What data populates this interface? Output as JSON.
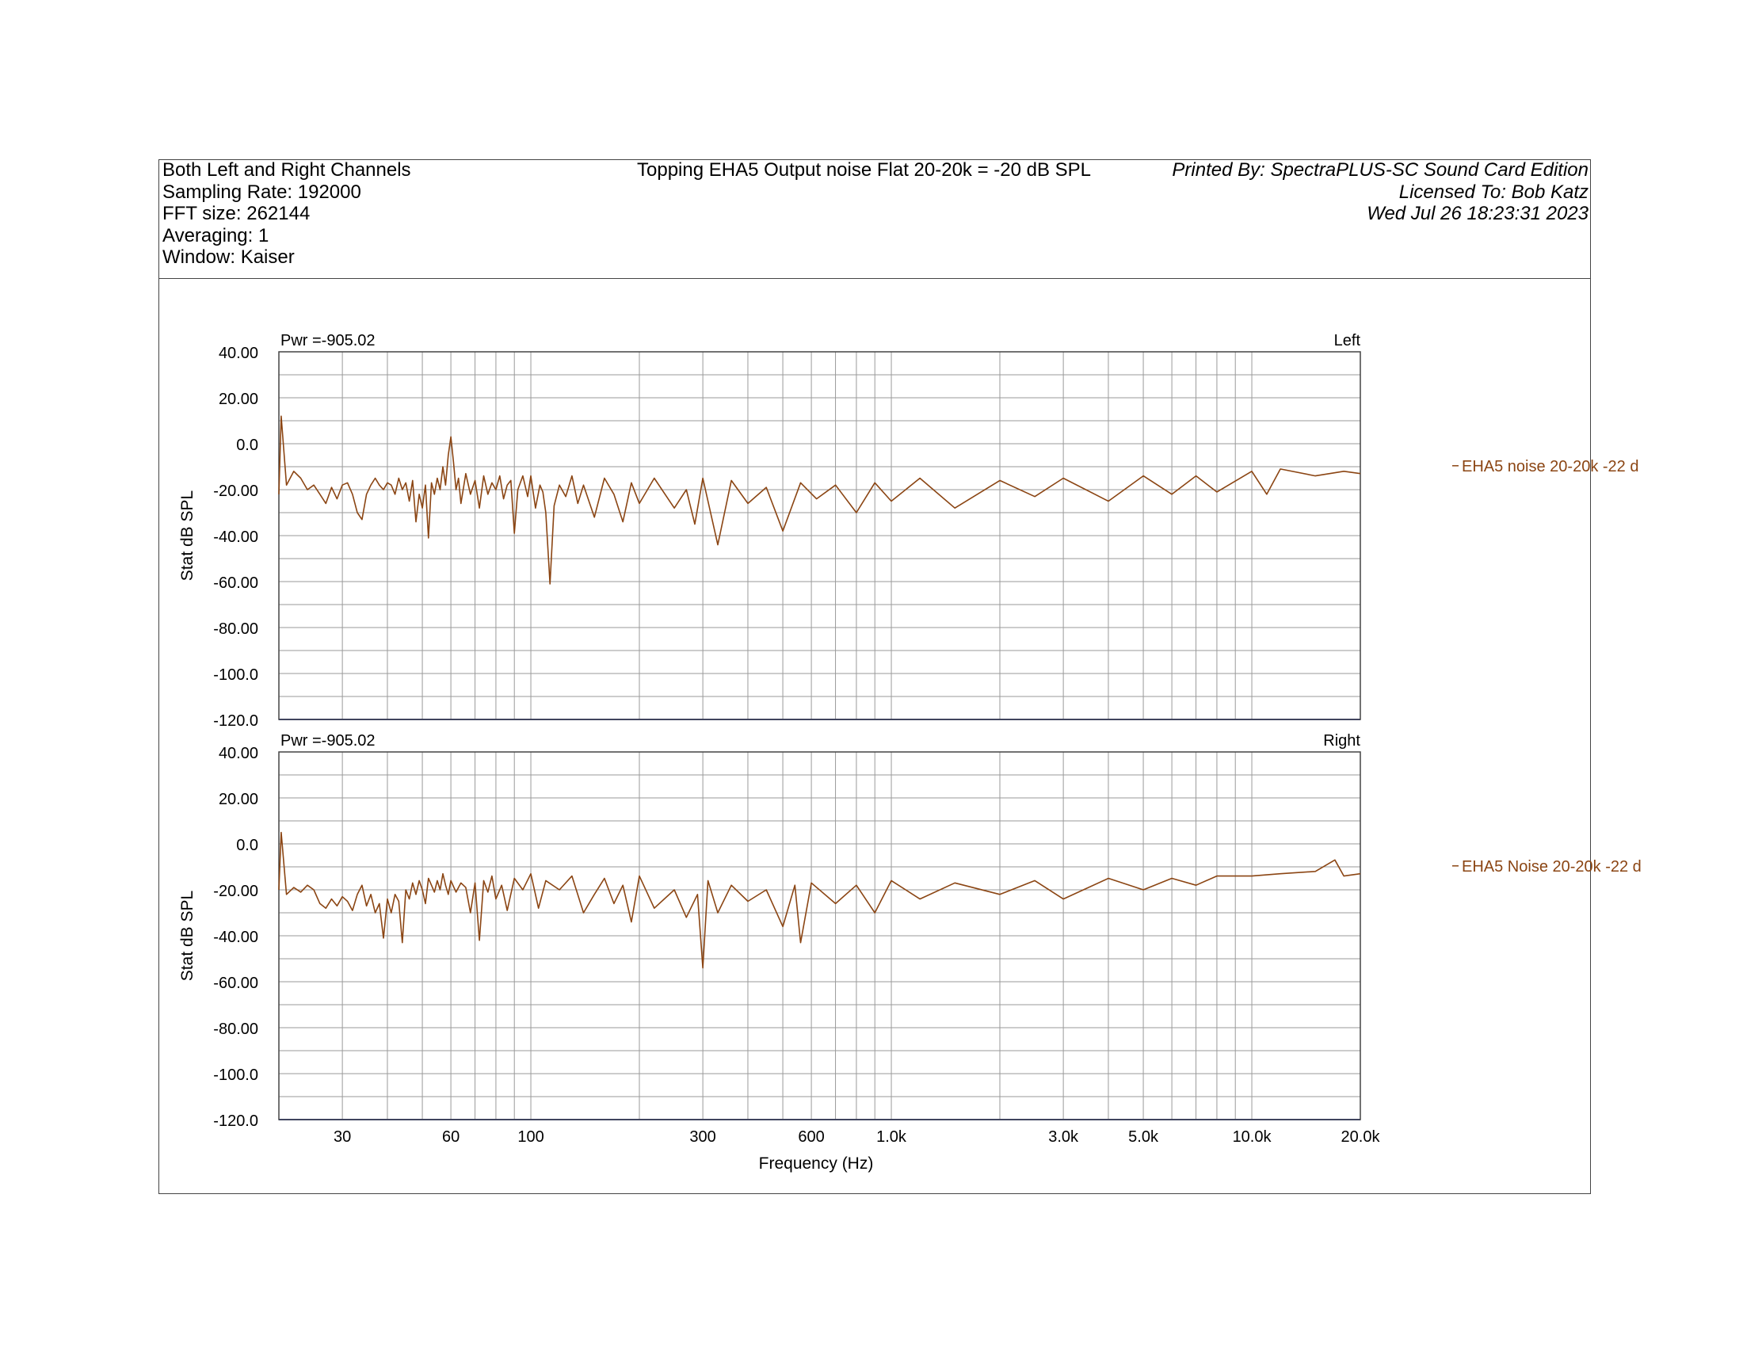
{
  "header": {
    "left_lines": [
      "Both Left and Right Channels",
      "Sampling Rate: 192000",
      "FFT size: 262144",
      "Averaging: 1",
      "Window: Kaiser"
    ],
    "title": "Topping EHA5 Output noise Flat 20-20k = -20 dB SPL",
    "right_lines": [
      "Printed By: SpectraPLUS-SC Sound Card Edition",
      "Licensed To: Bob Katz",
      "Wed Jul 26 18:23:31 2023"
    ]
  },
  "colors": {
    "trace": "#8b4513",
    "baseline": "#3344aa",
    "grid": "#9a9a9a",
    "frame": "#444444"
  },
  "chart_data": [
    {
      "type": "line",
      "channel": "Left",
      "pwr_label": "Pwr =-905.02",
      "legend": "EHA5 noise 20-20k -22 d",
      "ylabel": "Stat dB SPL",
      "xlabel": "Frequency (Hz)",
      "x_scale": "log",
      "xlim": [
        20,
        20000
      ],
      "ylim": [
        -120,
        40
      ],
      "grid": true,
      "y_ticks": [
        "40.00",
        "20.00",
        "0.0",
        "-20.00",
        "-40.00",
        "-60.00",
        "-80.00",
        "-100.0",
        "-120.0"
      ],
      "x": [
        20,
        20.3,
        21,
        22,
        23,
        24,
        25,
        26,
        27,
        28,
        29,
        30,
        31,
        32,
        33,
        34,
        35,
        36,
        37,
        38,
        39,
        40,
        41,
        42,
        43,
        44,
        45,
        46,
        47,
        48,
        49,
        50,
        51,
        52,
        53,
        54,
        55,
        56,
        57,
        58,
        59,
        60,
        61,
        62,
        63,
        64,
        66,
        68,
        70,
        72,
        74,
        76,
        78,
        80,
        82,
        84,
        86,
        88,
        90,
        92,
        95,
        98,
        100,
        103,
        106,
        108,
        110,
        113,
        116,
        120,
        125,
        130,
        135,
        140,
        150,
        160,
        170,
        180,
        190,
        200,
        220,
        250,
        270,
        285,
        300,
        330,
        360,
        400,
        450,
        500,
        560,
        620,
        700,
        800,
        900,
        1000,
        1200,
        1500,
        2000,
        2500,
        3000,
        4000,
        5000,
        6000,
        7000,
        8000,
        10000,
        11000,
        12000,
        15000,
        18000,
        20000
      ],
      "y": [
        -22,
        12,
        -18,
        -12,
        -15,
        -20,
        -18,
        -22,
        -26,
        -19,
        -24,
        -18,
        -17,
        -22,
        -30,
        -33,
        -22,
        -18,
        -15,
        -18,
        -20,
        -17,
        -18,
        -22,
        -15,
        -20,
        -17,
        -25,
        -16,
        -34,
        -22,
        -28,
        -18,
        -41,
        -17,
        -22,
        -15,
        -20,
        -10,
        -18,
        -5,
        3,
        -8,
        -20,
        -15,
        -26,
        -13,
        -22,
        -16,
        -28,
        -14,
        -22,
        -17,
        -20,
        -14,
        -24,
        -18,
        -16,
        -39,
        -20,
        -14,
        -23,
        -14,
        -28,
        -18,
        -21,
        -30,
        -61,
        -27,
        -18,
        -23,
        -14,
        -26,
        -18,
        -32,
        -15,
        -22,
        -34,
        -17,
        -26,
        -15,
        -28,
        -20,
        -35,
        -15,
        -44,
        -16,
        -26,
        -19,
        -38,
        -17,
        -24,
        -18,
        -30,
        -17,
        -25,
        -15,
        -28,
        -16,
        -23,
        -15,
        -25,
        -14,
        -22,
        -14,
        -21,
        -12,
        -22,
        -11,
        -14,
        -12,
        -13
      ]
    },
    {
      "type": "line",
      "channel": "Right",
      "pwr_label": "Pwr =-905.02",
      "legend": "EHA5 Noise 20-20k -22 d",
      "ylabel": "Stat dB SPL",
      "xlabel": "Frequency (Hz)",
      "x_scale": "log",
      "xlim": [
        20,
        20000
      ],
      "ylim": [
        -120,
        40
      ],
      "grid": true,
      "y_ticks": [
        "40.00",
        "20.00",
        "0.0",
        "-20.00",
        "-40.00",
        "-60.00",
        "-80.00",
        "-100.0",
        "-120.0"
      ],
      "x": [
        20,
        20.3,
        21,
        22,
        23,
        24,
        25,
        26,
        27,
        28,
        29,
        30,
        31,
        32,
        33,
        34,
        35,
        36,
        37,
        38,
        39,
        40,
        41,
        42,
        43,
        44,
        45,
        46,
        47,
        48,
        49,
        50,
        51,
        52,
        53,
        54,
        55,
        56,
        57,
        58,
        59,
        60,
        62,
        64,
        66,
        68,
        70,
        72,
        74,
        76,
        78,
        80,
        83,
        86,
        90,
        95,
        100,
        105,
        110,
        120,
        130,
        140,
        150,
        160,
        170,
        180,
        190,
        200,
        220,
        250,
        270,
        290,
        300,
        310,
        330,
        360,
        400,
        450,
        500,
        540,
        560,
        600,
        700,
        800,
        900,
        1000,
        1200,
        1500,
        2000,
        2500,
        3000,
        4000,
        5000,
        6000,
        7000,
        8000,
        10000,
        12000,
        15000,
        17000,
        18000,
        20000
      ],
      "y": [
        -20,
        5,
        -22,
        -19,
        -21,
        -18,
        -20,
        -26,
        -28,
        -24,
        -27,
        -23,
        -25,
        -29,
        -22,
        -18,
        -27,
        -22,
        -30,
        -26,
        -41,
        -24,
        -30,
        -22,
        -25,
        -43,
        -20,
        -24,
        -17,
        -22,
        -16,
        -20,
        -26,
        -15,
        -18,
        -21,
        -16,
        -20,
        -13,
        -18,
        -22,
        -16,
        -21,
        -17,
        -19,
        -30,
        -17,
        -42,
        -16,
        -21,
        -14,
        -24,
        -18,
        -29,
        -15,
        -20,
        -13,
        -28,
        -16,
        -20,
        -14,
        -30,
        -22,
        -15,
        -26,
        -18,
        -34,
        -14,
        -28,
        -20,
        -32,
        -22,
        -54,
        -16,
        -30,
        -18,
        -25,
        -20,
        -36,
        -18,
        -43,
        -17,
        -26,
        -18,
        -30,
        -16,
        -24,
        -17,
        -22,
        -16,
        -24,
        -15,
        -20,
        -15,
        -18,
        -14,
        -14,
        -13,
        -12,
        -7,
        -14,
        -13
      ]
    }
  ],
  "x_ticks": [
    "30",
    "60",
    "100",
    "300",
    "600",
    "1.0k",
    "3.0k",
    "5.0k",
    "10.0k",
    "20.0k"
  ],
  "x_tick_values": [
    30,
    60,
    100,
    300,
    600,
    1000,
    3000,
    5000,
    10000,
    20000
  ]
}
